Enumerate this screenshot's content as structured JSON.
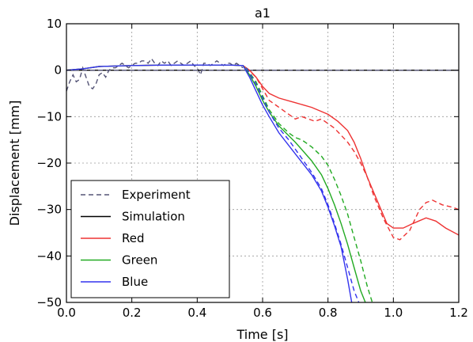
{
  "chart_data": {
    "type": "line",
    "title": "a1",
    "xlabel": "Time [s]",
    "ylabel": "Displacement [mm]",
    "xlim": [
      0.0,
      1.2
    ],
    "ylim": [
      -50,
      10
    ],
    "xticks": [
      0.0,
      0.2,
      0.4,
      0.6,
      0.8,
      1.0,
      1.2
    ],
    "yticks": [
      10,
      0,
      -10,
      -20,
      -30,
      -40,
      -50
    ],
    "xtick_labels": [
      "0.0",
      "0.2",
      "0.4",
      "0.6",
      "0.8",
      "1.0",
      "1.2"
    ],
    "ytick_labels": [
      "10",
      "0",
      "−10",
      "−20",
      "−30",
      "−40",
      "−50"
    ],
    "grid": true,
    "legend_position": "lower-left",
    "legend": [
      {
        "label": "Experiment",
        "color": "#555577",
        "style": "dashed"
      },
      {
        "label": "Simulation",
        "color": "#000000",
        "style": "solid"
      },
      {
        "label": "Red",
        "color": "#ee3333",
        "style": "solid"
      },
      {
        "label": "Green",
        "color": "#22aa22",
        "style": "solid"
      },
      {
        "label": "Blue",
        "color": "#3333ee",
        "style": "solid"
      }
    ],
    "series": [
      {
        "name": "Simulation",
        "color": "#000000",
        "style": "solid",
        "x": [
          0.0,
          1.2
        ],
        "y": [
          0,
          0
        ]
      },
      {
        "name": "Experiment",
        "color": "#555577",
        "style": "dashed",
        "x": [
          0.0,
          0.6,
          0.8,
          1.0,
          1.2
        ],
        "y": [
          0,
          0,
          0,
          0,
          0
        ]
      },
      {
        "name": "Red",
        "color": "#ee3333",
        "style": "solid",
        "x": [
          0.0,
          0.05,
          0.1,
          0.2,
          0.3,
          0.4,
          0.5,
          0.54,
          0.56,
          0.58,
          0.6,
          0.62,
          0.65,
          0.7,
          0.75,
          0.8,
          0.83,
          0.86,
          0.88,
          0.9,
          0.92,
          0.95,
          0.98,
          1.0,
          1.03,
          1.06,
          1.1,
          1.13,
          1.16,
          1.2
        ],
        "y": [
          0,
          0.3,
          0.8,
          1.0,
          1.1,
          1.1,
          1.1,
          1.0,
          0.0,
          -1.5,
          -3.5,
          -5.0,
          -6.0,
          -7.0,
          -8.0,
          -9.5,
          -11.0,
          -13.0,
          -15.5,
          -19.0,
          -23.0,
          -28.0,
          -33.0,
          -34.0,
          -34.0,
          -33.0,
          -31.8,
          -32.5,
          -34.0,
          -35.5
        ]
      },
      {
        "name": "Green",
        "color": "#22aa22",
        "style": "solid",
        "x": [
          0.0,
          0.05,
          0.1,
          0.2,
          0.3,
          0.4,
          0.5,
          0.54,
          0.56,
          0.58,
          0.6,
          0.62,
          0.65,
          0.7,
          0.75,
          0.78,
          0.8,
          0.82,
          0.84,
          0.86,
          0.88,
          0.9,
          0.92
        ],
        "y": [
          0,
          0.3,
          0.8,
          1.0,
          1.1,
          1.1,
          1.1,
          1.0,
          -1.0,
          -3.5,
          -6.5,
          -9.0,
          -12.0,
          -15.5,
          -19.5,
          -22.5,
          -25.5,
          -29.0,
          -33.0,
          -37.5,
          -42.5,
          -47.5,
          -51.0
        ]
      },
      {
        "name": "Blue",
        "color": "#3333ee",
        "style": "solid",
        "x": [
          0.0,
          0.05,
          0.1,
          0.2,
          0.3,
          0.4,
          0.5,
          0.54,
          0.56,
          0.58,
          0.6,
          0.62,
          0.65,
          0.7,
          0.75,
          0.78,
          0.8,
          0.82,
          0.84,
          0.86,
          0.875
        ],
        "y": [
          0,
          0.3,
          0.8,
          1.0,
          1.1,
          1.1,
          1.1,
          1.0,
          -1.5,
          -4.5,
          -7.5,
          -10.0,
          -13.5,
          -18.0,
          -22.5,
          -26.0,
          -29.5,
          -33.5,
          -38.0,
          -45.0,
          -51.0
        ]
      },
      {
        "name": "Experiment (Red)",
        "color": "#ee3333",
        "style": "dashed",
        "x": [
          0.55,
          0.58,
          0.6,
          0.62,
          0.65,
          0.68,
          0.7,
          0.72,
          0.74,
          0.76,
          0.78,
          0.8,
          0.82,
          0.84,
          0.86,
          0.88,
          0.9,
          0.92,
          0.94,
          0.97,
          1.0,
          1.02,
          1.05,
          1.08,
          1.1,
          1.12,
          1.15,
          1.18,
          1.2
        ],
        "y": [
          0.5,
          -1.5,
          -4.0,
          -6.5,
          -8.0,
          -9.5,
          -10.5,
          -10.0,
          -10.5,
          -11.0,
          -10.5,
          -11.5,
          -12.5,
          -14.0,
          -15.5,
          -17.5,
          -20.0,
          -23.0,
          -27.0,
          -32.0,
          -36.0,
          -36.5,
          -34.5,
          -30.0,
          -28.5,
          -28.0,
          -29.0,
          -29.5,
          -30.0
        ]
      },
      {
        "name": "Experiment (Green)",
        "color": "#22aa22",
        "style": "dashed",
        "x": [
          0.55,
          0.58,
          0.6,
          0.62,
          0.65,
          0.68,
          0.7,
          0.72,
          0.75,
          0.78,
          0.8,
          0.82,
          0.84,
          0.86,
          0.88,
          0.9,
          0.92,
          0.94
        ],
        "y": [
          0.5,
          -2.5,
          -5.5,
          -8.5,
          -11.5,
          -13.5,
          -14.5,
          -15.0,
          -16.5,
          -18.5,
          -20.5,
          -23.5,
          -27.0,
          -31.0,
          -36.0,
          -41.0,
          -46.5,
          -51.0
        ]
      },
      {
        "name": "Experiment (Blue)",
        "color": "#3333ee",
        "style": "dashed",
        "x": [
          0.55,
          0.58,
          0.6,
          0.62,
          0.65,
          0.68,
          0.7,
          0.72,
          0.75,
          0.78,
          0.8,
          0.82,
          0.84,
          0.86,
          0.88,
          0.9
        ],
        "y": [
          0.5,
          -3.0,
          -6.0,
          -9.0,
          -12.5,
          -15.0,
          -17.0,
          -19.0,
          -22.0,
          -25.5,
          -29.0,
          -33.0,
          -37.5,
          -42.5,
          -47.5,
          -51.0
        ]
      }
    ],
    "experiment_noise": {
      "color": "#555577",
      "style": "dashed",
      "x": [
        0.0,
        0.01,
        0.02,
        0.03,
        0.04,
        0.05,
        0.06,
        0.07,
        0.08,
        0.09,
        0.1,
        0.11,
        0.12,
        0.13,
        0.14,
        0.15,
        0.16,
        0.17,
        0.18,
        0.19,
        0.2,
        0.21,
        0.22,
        0.23,
        0.24,
        0.25,
        0.26,
        0.27,
        0.28,
        0.29,
        0.3,
        0.31,
        0.32,
        0.33,
        0.34,
        0.35,
        0.36,
        0.37,
        0.38,
        0.39,
        0.4,
        0.41,
        0.42,
        0.43,
        0.44,
        0.45,
        0.46,
        0.47,
        0.48,
        0.49,
        0.5,
        0.51,
        0.52,
        0.53,
        0.54
      ],
      "y": [
        -4.5,
        -2.5,
        -1.0,
        -2.5,
        -2.0,
        0.5,
        -1.5,
        -3.5,
        -4.0,
        -3.0,
        -1.0,
        -0.5,
        -1.5,
        0.0,
        0.5,
        0.5,
        1.0,
        1.5,
        1.0,
        0.5,
        1.0,
        1.5,
        1.5,
        2.0,
        2.0,
        1.5,
        2.5,
        1.5,
        1.0,
        2.0,
        1.5,
        2.0,
        1.0,
        1.5,
        2.0,
        1.5,
        1.0,
        1.5,
        2.0,
        1.0,
        0.5,
        -1.0,
        1.5,
        1.5,
        1.0,
        1.5,
        2.0,
        1.5,
        1.0,
        1.5,
        1.5,
        1.0,
        1.5,
        1.0,
        0.5
      ]
    }
  }
}
